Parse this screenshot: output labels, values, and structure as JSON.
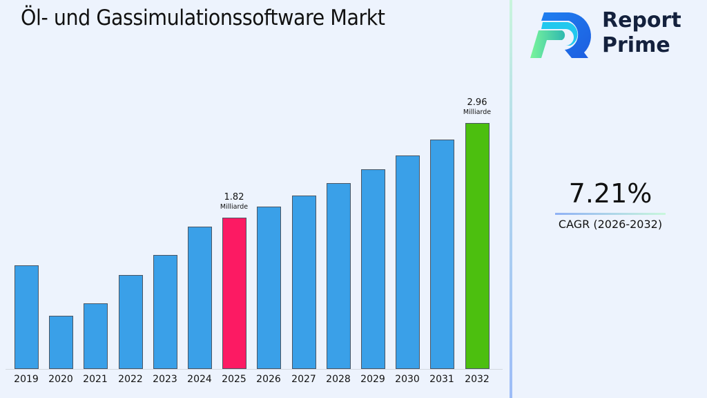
{
  "title": "Öl- und Gassimulationssoftware Markt",
  "brand": {
    "line1": "Report",
    "line2": "Prime"
  },
  "cagr": {
    "value": "7.21%",
    "label": "CAGR (2026-2032)"
  },
  "colors": {
    "default_bar": "#3aa0e8",
    "highlight_2025": "#fc1a63",
    "highlight_2032": "#4cbf0f",
    "background": "#edf3fd"
  },
  "annotations": [
    {
      "year": "2025",
      "value": "1.82",
      "unit": "Milliarde"
    },
    {
      "year": "2032",
      "value": "2.96",
      "unit": "Milliarde"
    }
  ],
  "chart_data": {
    "type": "bar",
    "title": "Öl- und Gassimulationssoftware Markt",
    "xlabel": "",
    "ylabel": "",
    "unit": "Milliarde",
    "categories": [
      "2019",
      "2020",
      "2021",
      "2022",
      "2023",
      "2024",
      "2025",
      "2026",
      "2027",
      "2028",
      "2029",
      "2030",
      "2031",
      "2032"
    ],
    "values": [
      1.25,
      0.64,
      0.79,
      1.13,
      1.37,
      1.71,
      1.82,
      1.95,
      2.09,
      2.24,
      2.4,
      2.57,
      2.76,
      2.96
    ],
    "ylim": [
      0,
      3.0
    ],
    "grid": false,
    "legend": "none",
    "cagr": "7.21%",
    "cagr_period": "2026-2032"
  }
}
